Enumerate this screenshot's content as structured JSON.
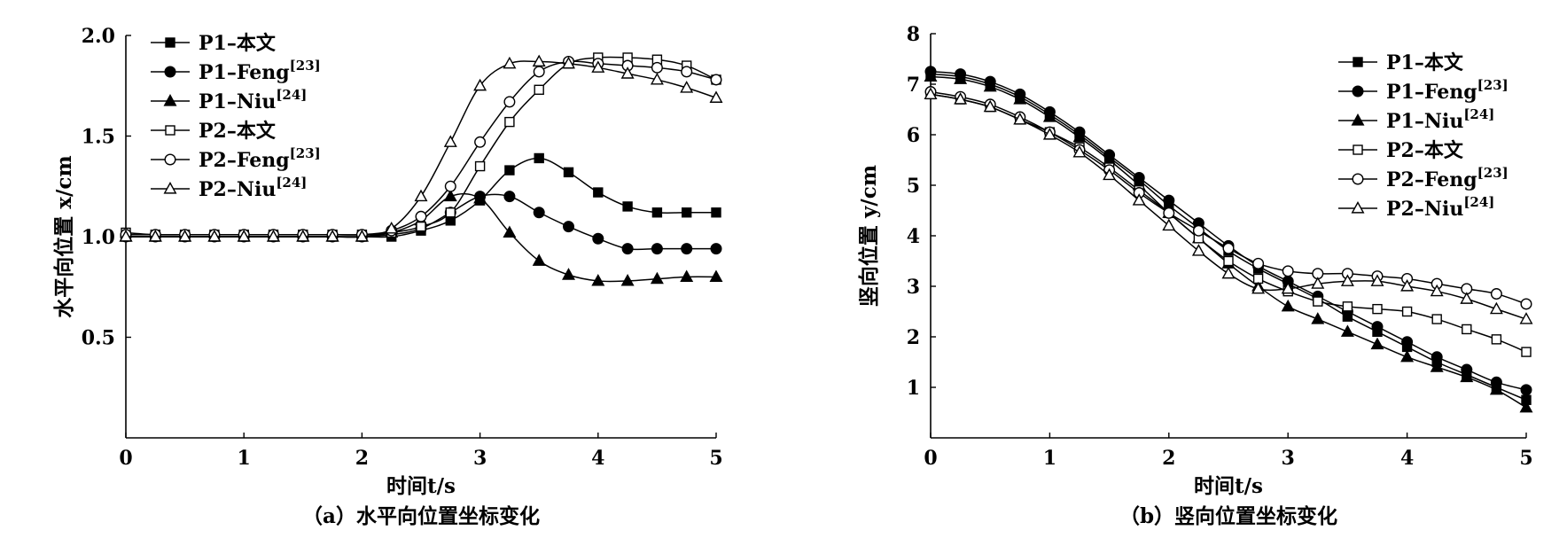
{
  "figure": {
    "panels": [
      "a",
      "b"
    ]
  },
  "chart_data": [
    {
      "type": "line",
      "panel": "a",
      "caption": "（a）水平向位置坐标变化",
      "xlabel": "时间t/s",
      "ylabel": "水平向位置 x/cm",
      "xlim": [
        0,
        5
      ],
      "ylim": [
        0.0,
        2.0
      ],
      "xticks": [
        "0",
        "1",
        "2",
        "3",
        "4",
        "5"
      ],
      "yticks": [
        "0.5",
        "1.0",
        "1.5",
        "2.0"
      ],
      "ytick_values": [
        0.5,
        1.0,
        1.5,
        2.0
      ],
      "legend_position": "top-left",
      "series": [
        {
          "name": "P1–本文",
          "label": "P1–本文",
          "ref": "",
          "marker": "square-filled",
          "x": [
            0.0,
            0.25,
            0.5,
            0.75,
            1.0,
            1.25,
            1.5,
            1.75,
            2.0,
            2.25,
            2.5,
            2.75,
            3.0,
            3.25,
            3.5,
            3.75,
            4.0,
            4.25,
            4.5,
            4.75,
            5.0
          ],
          "y": [
            1.0,
            1.0,
            1.0,
            1.0,
            1.0,
            1.0,
            1.0,
            1.0,
            1.0,
            1.0,
            1.03,
            1.08,
            1.18,
            1.33,
            1.39,
            1.32,
            1.22,
            1.15,
            1.12,
            1.12,
            1.12
          ]
        },
        {
          "name": "P1–Feng[23]",
          "label": "P1–Feng",
          "ref": "[23]",
          "marker": "circle-filled",
          "x": [
            0.0,
            0.25,
            0.5,
            0.75,
            1.0,
            1.25,
            1.5,
            1.75,
            2.0,
            2.25,
            2.5,
            2.75,
            3.0,
            3.25,
            3.5,
            3.75,
            4.0,
            4.25,
            4.5,
            4.75,
            5.0
          ],
          "y": [
            1.0,
            1.0,
            1.0,
            1.0,
            1.0,
            1.0,
            1.0,
            1.0,
            1.0,
            1.01,
            1.04,
            1.12,
            1.2,
            1.2,
            1.12,
            1.05,
            0.99,
            0.94,
            0.94,
            0.94,
            0.94
          ]
        },
        {
          "name": "P1–Niu[24]",
          "label": "P1–Niu",
          "ref": "[24]",
          "marker": "triangle-filled",
          "x": [
            0.0,
            0.25,
            0.5,
            0.75,
            1.0,
            1.25,
            1.5,
            1.75,
            2.0,
            2.25,
            2.5,
            2.75,
            3.0,
            3.25,
            3.5,
            3.75,
            4.0,
            4.25,
            4.5,
            4.75,
            5.0
          ],
          "y": [
            1.0,
            1.0,
            1.0,
            1.0,
            1.0,
            1.0,
            1.0,
            1.0,
            1.0,
            1.02,
            1.08,
            1.2,
            1.19,
            1.02,
            0.88,
            0.81,
            0.78,
            0.78,
            0.79,
            0.8,
            0.8
          ]
        },
        {
          "name": "P2–本文",
          "label": "P2–本文",
          "ref": "",
          "marker": "square-open",
          "x": [
            0.0,
            0.25,
            0.5,
            0.75,
            1.0,
            1.25,
            1.5,
            1.75,
            2.0,
            2.25,
            2.5,
            2.75,
            3.0,
            3.25,
            3.5,
            3.75,
            4.0,
            4.25,
            4.5,
            4.75,
            5.0
          ],
          "y": [
            1.02,
            1.01,
            1.01,
            1.01,
            1.01,
            1.01,
            1.01,
            1.01,
            1.01,
            1.02,
            1.05,
            1.12,
            1.35,
            1.57,
            1.73,
            1.86,
            1.89,
            1.89,
            1.88,
            1.85,
            1.78
          ]
        },
        {
          "name": "P2–Feng[23]",
          "label": "P2–Feng",
          "ref": "[23]",
          "marker": "circle-open",
          "x": [
            0.0,
            0.25,
            0.5,
            0.75,
            1.0,
            1.25,
            1.5,
            1.75,
            2.0,
            2.25,
            2.5,
            2.75,
            3.0,
            3.25,
            3.5,
            3.75,
            4.0,
            4.25,
            4.5,
            4.75,
            5.0
          ],
          "y": [
            1.01,
            1.01,
            1.01,
            1.01,
            1.01,
            1.01,
            1.01,
            1.01,
            1.01,
            1.03,
            1.1,
            1.25,
            1.47,
            1.67,
            1.82,
            1.87,
            1.86,
            1.85,
            1.84,
            1.82,
            1.78
          ]
        },
        {
          "name": "P2–Niu[24]",
          "label": "P2–Niu",
          "ref": "[24]",
          "marker": "triangle-open",
          "x": [
            0.0,
            0.25,
            0.5,
            0.75,
            1.0,
            1.25,
            1.5,
            1.75,
            2.0,
            2.25,
            2.5,
            2.75,
            3.0,
            3.25,
            3.5,
            3.75,
            4.0,
            4.25,
            4.5,
            4.75,
            5.0
          ],
          "y": [
            1.0,
            1.0,
            1.0,
            1.0,
            1.0,
            1.0,
            1.0,
            1.0,
            1.0,
            1.04,
            1.2,
            1.47,
            1.75,
            1.86,
            1.87,
            1.86,
            1.84,
            1.81,
            1.78,
            1.74,
            1.69
          ]
        }
      ]
    },
    {
      "type": "line",
      "panel": "b",
      "caption": "（b）竖向位置坐标变化",
      "xlabel": "时间t/s",
      "ylabel": "竖向位置 y/cm",
      "xlim": [
        0,
        5
      ],
      "ylim": [
        0,
        8
      ],
      "xticks": [
        "0",
        "1",
        "2",
        "3",
        "4",
        "5"
      ],
      "yticks": [
        "1",
        "2",
        "3",
        "4",
        "5",
        "6",
        "7",
        "8"
      ],
      "ytick_values": [
        1,
        2,
        3,
        4,
        5,
        6,
        7,
        8
      ],
      "legend_position": "top-right",
      "series": [
        {
          "name": "P1–本文",
          "label": "P1–本文",
          "ref": "",
          "marker": "square-filled",
          "x": [
            0.0,
            0.25,
            0.5,
            0.75,
            1.0,
            1.25,
            1.5,
            1.75,
            2.0,
            2.25,
            2.5,
            2.75,
            3.0,
            3.25,
            3.5,
            3.75,
            4.0,
            4.25,
            4.5,
            4.75,
            5.0
          ],
          "y": [
            7.2,
            7.15,
            7.0,
            6.75,
            6.4,
            6.0,
            5.55,
            5.1,
            4.6,
            4.15,
            3.7,
            3.35,
            3.05,
            2.75,
            2.4,
            2.1,
            1.8,
            1.5,
            1.25,
            1.0,
            0.75
          ]
        },
        {
          "name": "P1–Feng[23]",
          "label": "P1–Feng",
          "ref": "[23]",
          "marker": "circle-filled",
          "x": [
            0.0,
            0.25,
            0.5,
            0.75,
            1.0,
            1.25,
            1.5,
            1.75,
            2.0,
            2.25,
            2.5,
            2.75,
            3.0,
            3.25,
            3.5,
            3.75,
            4.0,
            4.25,
            4.5,
            4.75,
            5.0
          ],
          "y": [
            7.25,
            7.2,
            7.05,
            6.8,
            6.45,
            6.05,
            5.6,
            5.15,
            4.7,
            4.25,
            3.8,
            3.4,
            3.1,
            2.8,
            2.5,
            2.2,
            1.9,
            1.6,
            1.35,
            1.1,
            0.95
          ]
        },
        {
          "name": "P1–Niu[24]",
          "label": "P1–Niu",
          "ref": "[24]",
          "marker": "triangle-filled",
          "x": [
            0.0,
            0.25,
            0.5,
            0.75,
            1.0,
            1.25,
            1.5,
            1.75,
            2.0,
            2.25,
            2.5,
            2.75,
            3.0,
            3.25,
            3.5,
            3.75,
            4.0,
            4.25,
            4.5,
            4.75,
            5.0
          ],
          "y": [
            7.15,
            7.1,
            6.95,
            6.7,
            6.35,
            5.95,
            5.5,
            5.0,
            4.45,
            3.95,
            3.45,
            3.0,
            2.6,
            2.35,
            2.1,
            1.85,
            1.6,
            1.4,
            1.2,
            0.95,
            0.6
          ]
        },
        {
          "name": "P2–本文",
          "label": "P2–本文",
          "ref": "",
          "marker": "square-open",
          "x": [
            0.0,
            0.25,
            0.5,
            0.75,
            1.0,
            1.25,
            1.5,
            1.75,
            2.0,
            2.25,
            2.5,
            2.75,
            3.0,
            3.25,
            3.5,
            3.75,
            4.0,
            4.25,
            4.5,
            4.75,
            5.0
          ],
          "y": [
            6.8,
            6.7,
            6.55,
            6.3,
            6.05,
            5.75,
            5.35,
            4.9,
            4.45,
            3.95,
            3.5,
            3.15,
            2.9,
            2.7,
            2.6,
            2.55,
            2.5,
            2.35,
            2.15,
            1.95,
            1.7
          ]
        },
        {
          "name": "P2–Feng[23]",
          "label": "P2–Feng",
          "ref": "[23]",
          "marker": "circle-open",
          "x": [
            0.0,
            0.25,
            0.5,
            0.75,
            1.0,
            1.25,
            1.5,
            1.75,
            2.0,
            2.25,
            2.5,
            2.75,
            3.0,
            3.25,
            3.5,
            3.75,
            4.0,
            4.25,
            4.5,
            4.75,
            5.0
          ],
          "y": [
            6.85,
            6.75,
            6.6,
            6.35,
            6.05,
            5.7,
            5.3,
            4.85,
            4.45,
            4.1,
            3.75,
            3.45,
            3.3,
            3.25,
            3.25,
            3.2,
            3.15,
            3.05,
            2.95,
            2.85,
            2.65
          ]
        },
        {
          "name": "P2–Niu[24]",
          "label": "P2–Niu",
          "ref": "[24]",
          "marker": "triangle-open",
          "x": [
            0.0,
            0.25,
            0.5,
            0.75,
            1.0,
            1.25,
            1.5,
            1.75,
            2.0,
            2.25,
            2.5,
            2.75,
            3.0,
            3.25,
            3.5,
            3.75,
            4.0,
            4.25,
            4.5,
            4.75,
            5.0
          ],
          "y": [
            6.8,
            6.7,
            6.55,
            6.3,
            6.0,
            5.65,
            5.2,
            4.7,
            4.2,
            3.7,
            3.25,
            2.95,
            2.95,
            3.05,
            3.1,
            3.1,
            3.0,
            2.9,
            2.75,
            2.55,
            2.35
          ]
        }
      ]
    }
  ]
}
